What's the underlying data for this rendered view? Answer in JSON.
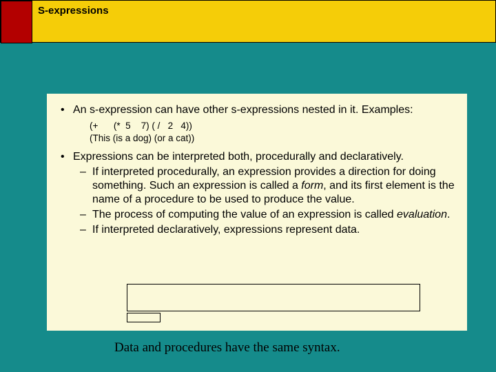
{
  "colors": {
    "page_bg": "#158b8b",
    "title_bar_bg": "#f5cd08",
    "accent_box": "#b30000",
    "content_bg": "#fbf9d9",
    "text": "#000000",
    "border": "#000000"
  },
  "title": "S-expressions",
  "bullets": {
    "b1": "An s-expression can have other s-expressions nested in it. Examples:",
    "code1": "(+      (*  5    7) ( /   2   4))",
    "code2": "(This (is a dog) (or a cat))",
    "b2": "Expressions can be interpreted both, procedurally and declaratively.",
    "s1a": "If interpreted procedurally, an expression provides a direction for doing something. Such an expression is called a ",
    "s1b": "form",
    "s1c": ", and its first element is the name of a procedure to be used to produce the value.",
    "s2a": "The process of computing the value of an expression is called ",
    "s2b": "evaluation",
    "s2c": ".",
    "s3": "If interpreted declaratively, expressions represent data."
  },
  "footer": "Data and procedures have the same syntax."
}
